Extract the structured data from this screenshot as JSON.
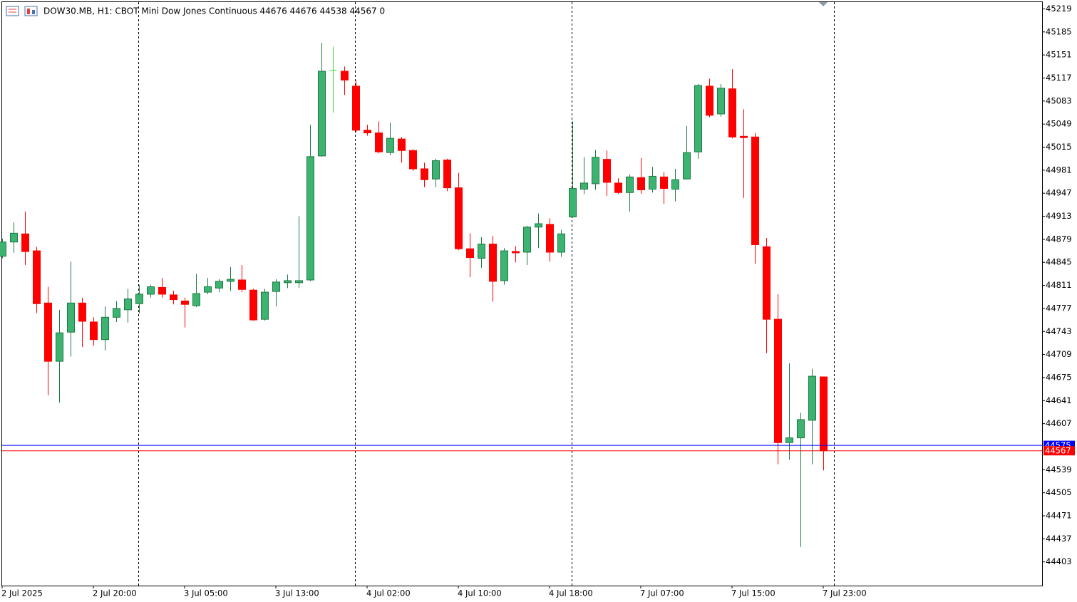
{
  "chart_data": {
    "type": "candlestick",
    "title": "DOW30.MB, H1:  CBOT Mini Dow Jones Continuous  44676 44676 44538 44567  0",
    "categories": [
      "2 Jul 2025",
      null,
      null,
      null,
      null,
      null,
      null,
      null,
      "2 Jul 20:00",
      null,
      null,
      null,
      null,
      null,
      null,
      null,
      "3 Jul 05:00",
      null,
      null,
      null,
      null,
      null,
      null,
      null,
      "3 Jul 13:00",
      null,
      null,
      null,
      null,
      null,
      null,
      null,
      "4 Jul 02:00",
      null,
      null,
      null,
      null,
      null,
      null,
      null,
      "4 Jul 10:00",
      null,
      null,
      null,
      null,
      null,
      null,
      null,
      "4 Jul 18:00",
      null,
      null,
      null,
      null,
      null,
      null,
      null,
      "7 Jul 07:00",
      null,
      null,
      null,
      null,
      null,
      null,
      null,
      "7 Jul 15:00",
      null,
      null,
      null,
      null,
      null,
      null,
      null,
      "7 Jul 23:00"
    ],
    "open": [
      44854,
      44875,
      44887,
      44862,
      44785,
      44699,
      44742,
      44785,
      44757,
      44731,
      44764,
      44775,
      44784,
      44798,
      44808,
      44797,
      44788,
      44781,
      44801,
      44807,
      44817,
      44819,
      44804,
      44761,
      44802,
      44815,
      44815,
      44819,
      45002,
      45128,
      45127,
      45105,
      45040,
      45036,
      45007,
      45027,
      45010,
      44983,
      44968,
      44996,
      44955,
      44865,
      44851,
      44872,
      44818,
      44861,
      44860,
      44897,
      44901,
      44860,
      44912,
      44953,
      44961,
      44997,
      44962,
      44948,
      44970,
      44953,
      44971,
      44953,
      44968,
      45008,
      45105,
      45064,
      45101,
      45031,
      45030,
      44868,
      44761,
      44579,
      44586,
      44612,
      44676
    ],
    "high": [
      44880,
      44904,
      44920,
      44868,
      44809,
      44775,
      44846,
      44793,
      44764,
      44780,
      44788,
      44806,
      44812,
      44812,
      44822,
      44803,
      44793,
      44828,
      44822,
      44820,
      44838,
      44841,
      44806,
      44806,
      44820,
      44827,
      44913,
      45048,
      45169,
      45163,
      45134,
      45113,
      45048,
      45053,
      45051,
      45030,
      45012,
      44992,
      44998,
      44998,
      44977,
      44888,
      44882,
      44884,
      44866,
      44869,
      44899,
      44917,
      44910,
      44893,
      45053,
      45000,
      45011,
      45010,
      44969,
      44975,
      44999,
      44986,
      44978,
      44983,
      45046,
      45108,
      45116,
      45108,
      45130,
      45071,
      45036,
      44881,
      44798,
      44696,
      44623,
      44688,
      44676
    ],
    "low": [
      44851,
      44859,
      44841,
      44770,
      44649,
      44638,
      44706,
      44720,
      44722,
      44715,
      44757,
      44756,
      44770,
      44793,
      44793,
      44783,
      44749,
      44779,
      44798,
      44801,
      44803,
      44801,
      44759,
      44759,
      44780,
      44807,
      44807,
      44817,
      45001,
      45066,
      45092,
      45037,
      45032,
      45006,
      45003,
      44992,
      44980,
      44956,
      44956,
      44950,
      44863,
      44823,
      44837,
      44787,
      44812,
      44845,
      44841,
      44866,
      44846,
      44853,
      44911,
      44946,
      44952,
      44943,
      44946,
      44920,
      44946,
      44948,
      44931,
      44935,
      44967,
      44998,
      45059,
      45060,
      45028,
      44940,
      44843,
      44711,
      44547,
      44554,
      44425,
      44547,
      44538
    ],
    "close": [
      44875,
      44888,
      44861,
      44784,
      44699,
      44741,
      44785,
      44758,
      44731,
      44764,
      44777,
      44791,
      44798,
      44809,
      44798,
      44790,
      44783,
      44799,
      44809,
      44817,
      44820,
      44805,
      44760,
      44801,
      44816,
      44818,
      44818,
      45001,
      45127,
      45128,
      45114,
      45040,
      45036,
      45008,
      45028,
      45010,
      44983,
      44967,
      44995,
      44955,
      44865,
      44852,
      44872,
      44817,
      44862,
      44859,
      44897,
      44902,
      44860,
      44887,
      44954,
      44962,
      45000,
      44963,
      44948,
      44971,
      44952,
      44972,
      44954,
      44967,
      45007,
      45106,
      45062,
      45102,
      45030,
      45029,
      44871,
      44761,
      44579,
      44586,
      44613,
      44677,
      44567
    ],
    "up_color": "#3cb371",
    "up_outline": "#1f7a45",
    "down_color": "#ff0000",
    "doji_color": "#32e032",
    "ylim": [
      44368,
      45230
    ],
    "yticks": [
      44403,
      44437,
      44471,
      44505,
      44539,
      44607,
      44641,
      44675,
      44709,
      44743,
      44777,
      44811,
      44845,
      44879,
      44913,
      44947,
      44981,
      45015,
      45049,
      45083,
      45117,
      45151,
      45185,
      45219
    ],
    "price_lines": [
      {
        "value": 44575,
        "color": "#0000ff"
      },
      {
        "value": 44567,
        "color": "#ff0000"
      }
    ]
  }
}
